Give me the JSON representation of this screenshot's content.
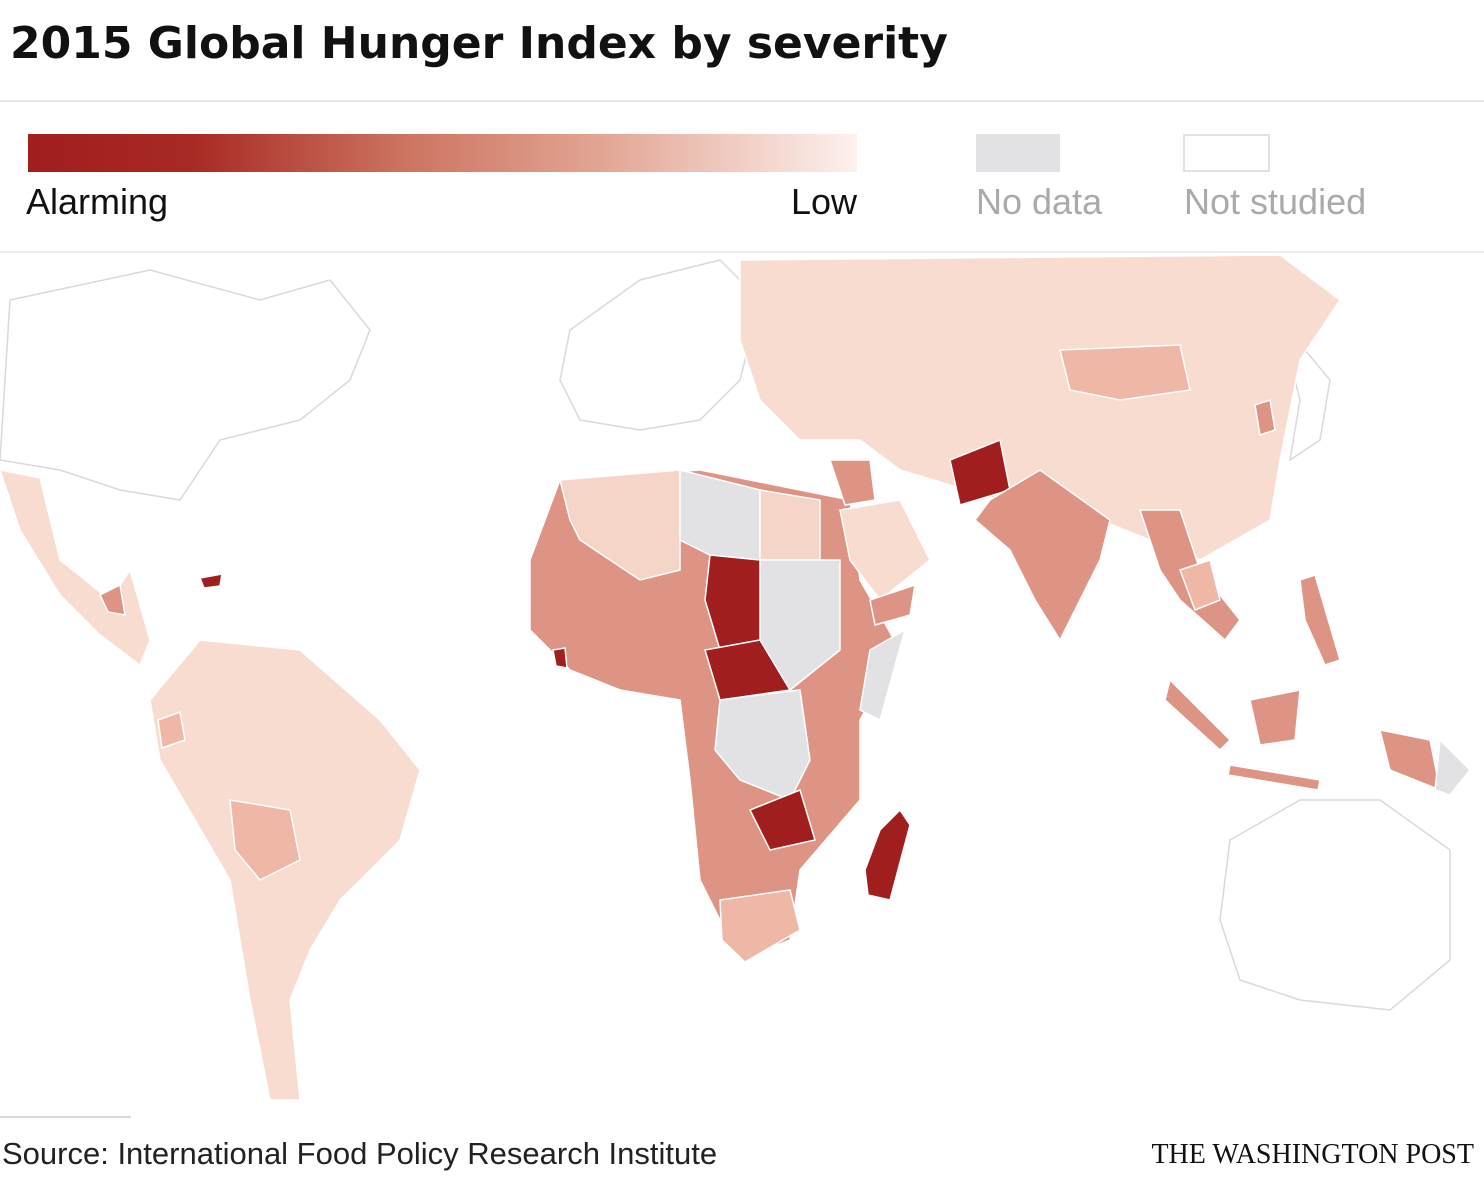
{
  "header": {
    "title": "2015 Global Hunger Index by severity"
  },
  "legend": {
    "high_label": "Alarming",
    "low_label": "Low",
    "no_data_label": "No data",
    "not_studied_label": "Not studied"
  },
  "footer": {
    "source": "Source: International Food Policy Research Institute",
    "credit": "THE WASHINGTON POST"
  }
}
